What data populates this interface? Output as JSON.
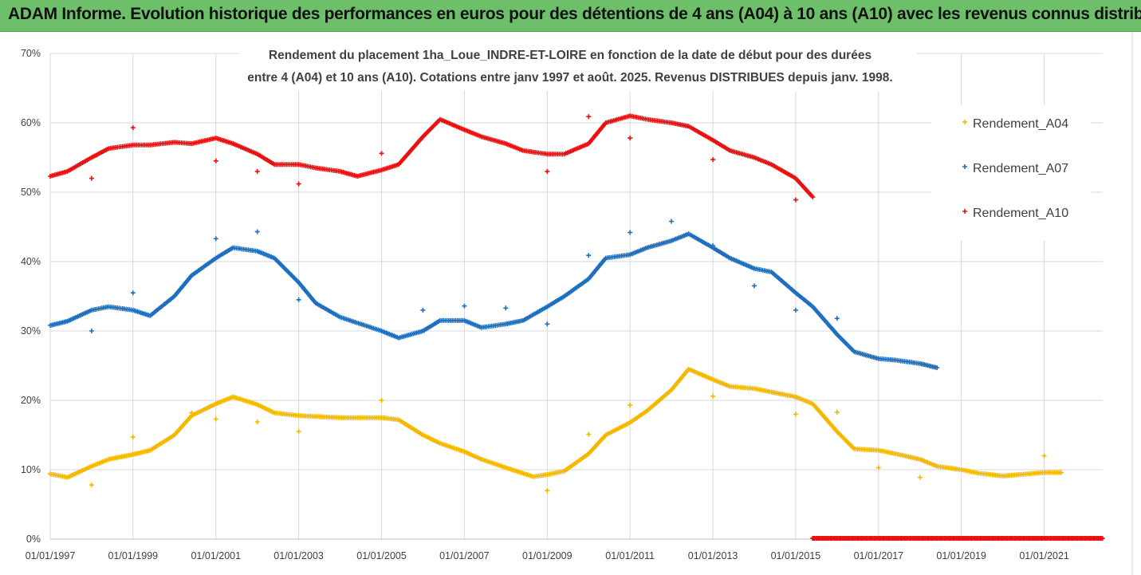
{
  "banner": {
    "text": "ADAM Informe. Evolution historique des performances en euros pour des détentions de 4 ans (A04) à 10 ans (A10) avec les revenus connus distribués"
  },
  "colors": {
    "banner_bg": "#6dbf6a",
    "A04": "#f5b800",
    "A07": "#1f6fbf",
    "A10": "#e81010",
    "grid": "#d9d9d9"
  },
  "chart_data": {
    "type": "scatter",
    "title_lines": [
      "Rendement du placement 1ha_Loue_INDRE-ET-LOIRE en fonction de la date de début pour des durées",
      "entre 4 (A04) et 10 ans (A10). Cotations entre janv 1997 et août. 2025. Revenus DISTRIBUES depuis janv. 1998."
    ],
    "x_range": [
      "1997-01-01",
      "2022-06-01"
    ],
    "y_range": [
      0,
      70
    ],
    "y_tick_labels": [
      "0%",
      "10%",
      "20%",
      "30%",
      "40%",
      "50%",
      "60%",
      "70%"
    ],
    "x_tick_labels": [
      "01/01/1997",
      "01/01/1999",
      "01/01/2001",
      "01/01/2003",
      "01/01/2005",
      "01/01/2007",
      "01/01/2009",
      "01/01/2011",
      "01/01/2013",
      "01/01/2015",
      "01/01/2017",
      "01/01/2019",
      "01/01/2021"
    ],
    "grid": true,
    "legend_position": "right",
    "series": [
      {
        "name": "Rendement_A04",
        "color": "#f5b800",
        "points": [
          [
            "1997-01-01",
            9.4
          ],
          [
            "1997-06-01",
            8.9
          ],
          [
            "1998-01-01",
            10.5
          ],
          [
            "1998-06-01",
            11.5
          ],
          [
            "1999-01-01",
            12.2
          ],
          [
            "1999-06-01",
            12.8
          ],
          [
            "2000-01-01",
            15.0
          ],
          [
            "2000-06-01",
            17.8
          ],
          [
            "2001-01-01",
            19.5
          ],
          [
            "2001-06-01",
            20.5
          ],
          [
            "2002-01-01",
            19.4
          ],
          [
            "2002-06-01",
            18.2
          ],
          [
            "2003-01-01",
            17.8
          ],
          [
            "2004-01-01",
            17.5
          ],
          [
            "2005-01-01",
            17.5
          ],
          [
            "2005-06-01",
            17.2
          ],
          [
            "2006-01-01",
            15.0
          ],
          [
            "2006-06-01",
            13.8
          ],
          [
            "2007-01-01",
            12.6
          ],
          [
            "2007-06-01",
            11.5
          ],
          [
            "2008-01-01",
            10.3
          ],
          [
            "2008-09-01",
            9.0
          ],
          [
            "2009-01-01",
            9.3
          ],
          [
            "2009-06-01",
            9.8
          ],
          [
            "2010-01-01",
            12.3
          ],
          [
            "2010-06-01",
            15.0
          ],
          [
            "2011-01-01",
            16.8
          ],
          [
            "2011-06-01",
            18.5
          ],
          [
            "2012-01-01",
            21.5
          ],
          [
            "2012-06-01",
            24.5
          ],
          [
            "2013-01-01",
            23.0
          ],
          [
            "2013-06-01",
            22.0
          ],
          [
            "2014-01-01",
            21.7
          ],
          [
            "2014-06-01",
            21.2
          ],
          [
            "2015-01-01",
            20.5
          ],
          [
            "2015-06-01",
            19.5
          ],
          [
            "2016-01-01",
            15.5
          ],
          [
            "2016-06-01",
            13.0
          ],
          [
            "2017-01-01",
            12.8
          ],
          [
            "2017-06-01",
            12.3
          ],
          [
            "2018-01-01",
            11.5
          ],
          [
            "2018-06-01",
            10.5
          ],
          [
            "2019-01-01",
            10.0
          ],
          [
            "2019-06-01",
            9.5
          ],
          [
            "2020-01-01",
            9.1
          ],
          [
            "2020-06-01",
            9.3
          ],
          [
            "2021-01-01",
            9.6
          ],
          [
            "2021-06-01",
            9.6
          ]
        ],
        "outliers": [
          [
            "1998-01-01",
            7.8
          ],
          [
            "1999-01-01",
            14.7
          ],
          [
            "2000-06-01",
            18.2
          ],
          [
            "2001-01-01",
            17.3
          ],
          [
            "2002-01-01",
            16.9
          ],
          [
            "2003-01-01",
            15.5
          ],
          [
            "2005-01-01",
            20.0
          ],
          [
            "2009-01-01",
            7.0
          ],
          [
            "2010-01-01",
            15.1
          ],
          [
            "2011-01-01",
            19.3
          ],
          [
            "2013-01-01",
            20.6
          ],
          [
            "2015-01-01",
            18.0
          ],
          [
            "2016-01-01",
            18.3
          ],
          [
            "2017-01-01",
            10.3
          ],
          [
            "2018-01-01",
            8.9
          ],
          [
            "2021-01-01",
            12.0
          ]
        ]
      },
      {
        "name": "Rendement_A07",
        "color": "#1f6fbf",
        "points": [
          [
            "1997-01-01",
            30.8
          ],
          [
            "1997-06-01",
            31.4
          ],
          [
            "1998-01-01",
            33.0
          ],
          [
            "1998-06-01",
            33.5
          ],
          [
            "1999-01-01",
            33.0
          ],
          [
            "1999-06-01",
            32.2
          ],
          [
            "2000-01-01",
            35.0
          ],
          [
            "2000-06-01",
            38.0
          ],
          [
            "2001-01-01",
            40.5
          ],
          [
            "2001-06-01",
            42.0
          ],
          [
            "2002-01-01",
            41.5
          ],
          [
            "2002-06-01",
            40.5
          ],
          [
            "2003-01-01",
            37.0
          ],
          [
            "2003-06-01",
            34.0
          ],
          [
            "2004-01-01",
            32.0
          ],
          [
            "2005-01-01",
            30.0
          ],
          [
            "2005-06-01",
            29.0
          ],
          [
            "2006-01-01",
            30.0
          ],
          [
            "2006-06-01",
            31.5
          ],
          [
            "2007-01-01",
            31.5
          ],
          [
            "2007-06-01",
            30.5
          ],
          [
            "2008-01-01",
            31.0
          ],
          [
            "2008-06-01",
            31.5
          ],
          [
            "2009-01-01",
            33.5
          ],
          [
            "2009-06-01",
            35.0
          ],
          [
            "2010-01-01",
            37.5
          ],
          [
            "2010-06-01",
            40.5
          ],
          [
            "2011-01-01",
            41.0
          ],
          [
            "2011-06-01",
            42.0
          ],
          [
            "2012-01-01",
            43.0
          ],
          [
            "2012-06-01",
            44.0
          ],
          [
            "2013-01-01",
            42.0
          ],
          [
            "2013-06-01",
            40.5
          ],
          [
            "2014-01-01",
            39.0
          ],
          [
            "2014-06-01",
            38.5
          ],
          [
            "2015-01-01",
            35.5
          ],
          [
            "2015-06-01",
            33.5
          ],
          [
            "2016-01-01",
            29.5
          ],
          [
            "2016-06-01",
            27.0
          ],
          [
            "2017-01-01",
            26.0
          ],
          [
            "2017-06-01",
            25.8
          ],
          [
            "2018-01-01",
            25.3
          ],
          [
            "2018-06-01",
            24.7
          ]
        ],
        "outliers": [
          [
            "1998-01-01",
            30.0
          ],
          [
            "1999-01-01",
            35.5
          ],
          [
            "2001-01-01",
            43.3
          ],
          [
            "2002-01-01",
            44.3
          ],
          [
            "2003-01-01",
            34.5
          ],
          [
            "2006-01-01",
            33.0
          ],
          [
            "2007-01-01",
            33.6
          ],
          [
            "2008-01-01",
            33.3
          ],
          [
            "2009-01-01",
            31.0
          ],
          [
            "2010-01-01",
            40.9
          ],
          [
            "2011-01-01",
            44.2
          ],
          [
            "2012-01-01",
            45.8
          ],
          [
            "2013-01-01",
            42.3
          ],
          [
            "2014-01-01",
            36.5
          ],
          [
            "2015-01-01",
            33.0
          ],
          [
            "2016-01-01",
            31.8
          ]
        ]
      },
      {
        "name": "Rendement_A10",
        "color": "#e81010",
        "points": [
          [
            "1997-01-01",
            52.3
          ],
          [
            "1997-06-01",
            53.0
          ],
          [
            "1998-01-01",
            55.0
          ],
          [
            "1998-06-01",
            56.3
          ],
          [
            "1999-01-01",
            56.8
          ],
          [
            "1999-06-01",
            56.8
          ],
          [
            "2000-01-01",
            57.2
          ],
          [
            "2000-06-01",
            57.0
          ],
          [
            "2001-01-01",
            57.8
          ],
          [
            "2001-06-01",
            57.0
          ],
          [
            "2002-01-01",
            55.5
          ],
          [
            "2002-06-01",
            54.0
          ],
          [
            "2003-01-01",
            54.0
          ],
          [
            "2003-06-01",
            53.5
          ],
          [
            "2004-01-01",
            53.0
          ],
          [
            "2004-06-01",
            52.3
          ],
          [
            "2005-01-01",
            53.2
          ],
          [
            "2005-06-01",
            54.0
          ],
          [
            "2006-01-01",
            58.0
          ],
          [
            "2006-06-01",
            60.5
          ],
          [
            "2007-01-01",
            59.0
          ],
          [
            "2007-06-01",
            58.0
          ],
          [
            "2008-01-01",
            57.0
          ],
          [
            "2008-06-01",
            56.0
          ],
          [
            "2009-01-01",
            55.5
          ],
          [
            "2009-06-01",
            55.5
          ],
          [
            "2010-01-01",
            57.0
          ],
          [
            "2010-06-01",
            60.0
          ],
          [
            "2011-01-01",
            61.0
          ],
          [
            "2011-06-01",
            60.5
          ],
          [
            "2012-01-01",
            60.0
          ],
          [
            "2012-06-01",
            59.5
          ],
          [
            "2013-01-01",
            57.5
          ],
          [
            "2013-06-01",
            56.0
          ],
          [
            "2014-01-01",
            55.0
          ],
          [
            "2014-06-01",
            54.0
          ],
          [
            "2015-01-01",
            52.0
          ],
          [
            "2015-06-01",
            49.3
          ]
        ],
        "tail": {
          "from": "2015-06-01",
          "to": "2022-06-01",
          "value": 0
        },
        "outliers": [
          [
            "1998-01-01",
            52.0
          ],
          [
            "1999-01-01",
            59.3
          ],
          [
            "2001-01-01",
            54.5
          ],
          [
            "2002-01-01",
            53.0
          ],
          [
            "2003-01-01",
            51.2
          ],
          [
            "2005-01-01",
            55.6
          ],
          [
            "2009-01-01",
            53.0
          ],
          [
            "2010-01-01",
            60.9
          ],
          [
            "2011-01-01",
            57.8
          ],
          [
            "2013-01-01",
            54.7
          ],
          [
            "2015-01-01",
            48.9
          ]
        ]
      }
    ]
  }
}
